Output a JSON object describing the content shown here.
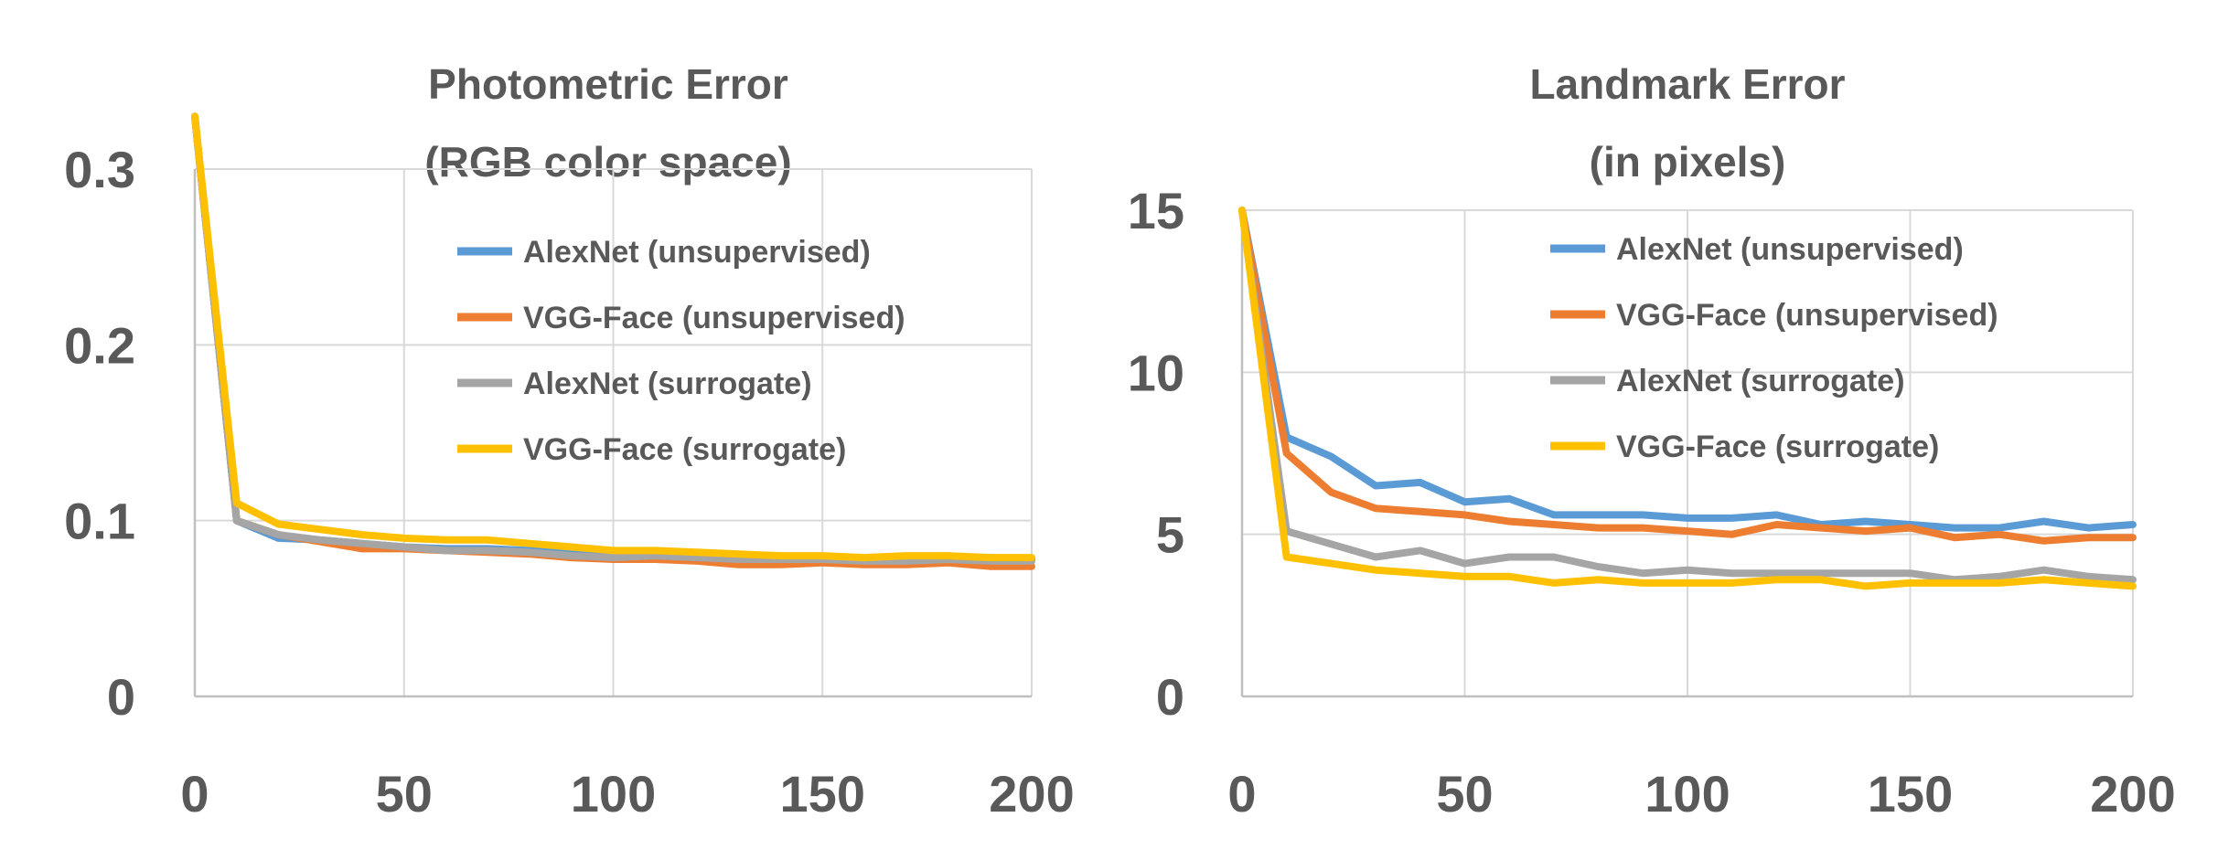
{
  "colors": {
    "alexnet_unsupervised": "#5b9bd5",
    "vggface_unsupervised": "#ed7d31",
    "alexnet_surrogate": "#a5a5a5",
    "vggface_surrogate": "#ffc000",
    "text": "#595959",
    "grid": "#d9d9d9"
  },
  "chart_data": [
    {
      "type": "line",
      "title_line1": "Photometric Error",
      "title_line2": "(RGB color space)",
      "xlabel": "",
      "ylabel": "",
      "xlim": [
        0,
        200
      ],
      "ylim": [
        0,
        0.3
      ],
      "x_ticks": [
        0,
        50,
        100,
        150,
        200
      ],
      "y_ticks": [
        0,
        0.1,
        0.2,
        0.3
      ],
      "x_tick_labels": [
        "0",
        "50",
        "100",
        "150",
        "200"
      ],
      "y_tick_labels": [
        "0",
        "0.1",
        "0.2",
        "0.3"
      ],
      "grid": true,
      "legend_position": "top-right",
      "x": [
        0,
        10,
        20,
        30,
        40,
        50,
        60,
        70,
        80,
        90,
        100,
        110,
        120,
        130,
        140,
        150,
        160,
        170,
        180,
        190,
        200
      ],
      "series": [
        {
          "name": "AlexNet (unsupervised)",
          "color_key": "alexnet_unsupervised",
          "values": [
            0.33,
            0.1,
            0.09,
            0.089,
            0.087,
            0.085,
            0.084,
            0.084,
            0.083,
            0.081,
            0.08,
            0.08,
            0.079,
            0.078,
            0.078,
            0.078,
            0.077,
            0.077,
            0.078,
            0.078,
            0.078
          ]
        },
        {
          "name": "VGG-Face (unsupervised)",
          "color_key": "vggface_unsupervised",
          "values": [
            0.33,
            0.1,
            0.092,
            0.088,
            0.084,
            0.084,
            0.083,
            0.082,
            0.081,
            0.079,
            0.078,
            0.078,
            0.077,
            0.075,
            0.075,
            0.076,
            0.075,
            0.075,
            0.076,
            0.074,
            0.074
          ]
        },
        {
          "name": "AlexNet (surrogate)",
          "color_key": "alexnet_surrogate",
          "values": [
            0.33,
            0.1,
            0.092,
            0.089,
            0.087,
            0.085,
            0.083,
            0.083,
            0.082,
            0.08,
            0.079,
            0.08,
            0.079,
            0.078,
            0.078,
            0.078,
            0.077,
            0.077,
            0.078,
            0.077,
            0.077
          ]
        },
        {
          "name": "VGG-Face (surrogate)",
          "color_key": "vggface_surrogate",
          "values": [
            0.33,
            0.11,
            0.098,
            0.095,
            0.092,
            0.09,
            0.089,
            0.089,
            0.087,
            0.085,
            0.083,
            0.083,
            0.082,
            0.081,
            0.08,
            0.08,
            0.079,
            0.08,
            0.08,
            0.079,
            0.079
          ]
        }
      ]
    },
    {
      "type": "line",
      "title_line1": "Landmark Error",
      "title_line2": "(in pixels)",
      "xlabel": "",
      "ylabel": "",
      "xlim": [
        0,
        200
      ],
      "ylim": [
        0,
        15
      ],
      "x_ticks": [
        0,
        50,
        100,
        150,
        200
      ],
      "y_ticks": [
        0,
        5,
        10,
        15
      ],
      "x_tick_labels": [
        "0",
        "50",
        "100",
        "150",
        "200"
      ],
      "y_tick_labels": [
        "0",
        "5",
        "10",
        "15"
      ],
      "grid": true,
      "legend_position": "top-right",
      "x": [
        0,
        10,
        20,
        30,
        40,
        50,
        60,
        70,
        80,
        90,
        100,
        110,
        120,
        130,
        140,
        150,
        160,
        170,
        180,
        190,
        200
      ],
      "series": [
        {
          "name": "AlexNet (unsupervised)",
          "color_key": "alexnet_unsupervised",
          "values": [
            15.0,
            8.0,
            7.4,
            6.5,
            6.6,
            6.0,
            6.1,
            5.6,
            5.6,
            5.6,
            5.5,
            5.5,
            5.6,
            5.3,
            5.4,
            5.3,
            5.2,
            5.2,
            5.4,
            5.2,
            5.3
          ]
        },
        {
          "name": "VGG-Face (unsupervised)",
          "color_key": "vggface_unsupervised",
          "values": [
            15.0,
            7.5,
            6.3,
            5.8,
            5.7,
            5.6,
            5.4,
            5.3,
            5.2,
            5.2,
            5.1,
            5.0,
            5.3,
            5.2,
            5.1,
            5.2,
            4.9,
            5.0,
            4.8,
            4.9,
            4.9
          ]
        },
        {
          "name": "AlexNet (surrogate)",
          "color_key": "alexnet_surrogate",
          "values": [
            15.0,
            5.1,
            4.7,
            4.3,
            4.5,
            4.1,
            4.3,
            4.3,
            4.0,
            3.8,
            3.9,
            3.8,
            3.8,
            3.8,
            3.8,
            3.8,
            3.6,
            3.7,
            3.9,
            3.7,
            3.6
          ]
        },
        {
          "name": "VGG-Face (surrogate)",
          "color_key": "vggface_surrogate",
          "values": [
            15.0,
            4.3,
            4.1,
            3.9,
            3.8,
            3.7,
            3.7,
            3.5,
            3.6,
            3.5,
            3.5,
            3.5,
            3.6,
            3.6,
            3.4,
            3.5,
            3.5,
            3.5,
            3.6,
            3.5,
            3.4
          ]
        }
      ]
    }
  ]
}
